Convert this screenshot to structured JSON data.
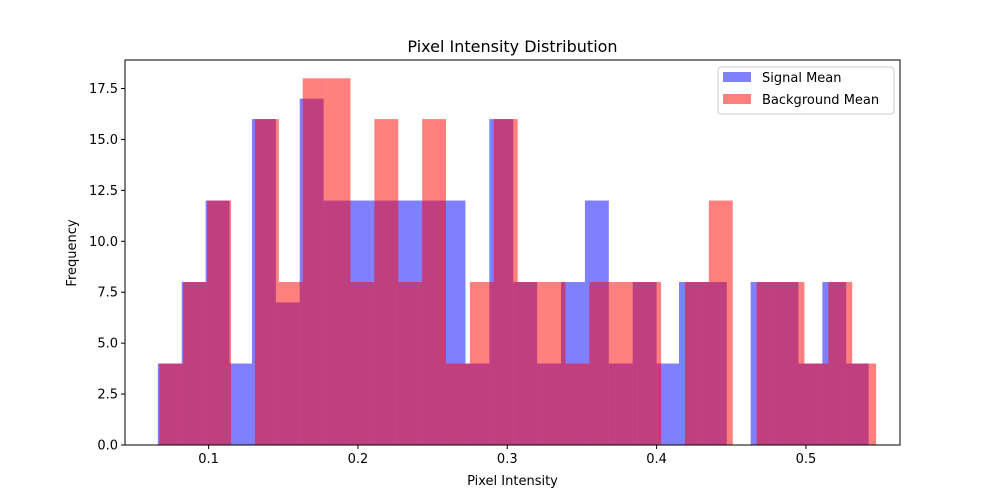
{
  "chart_data": {
    "type": "bar",
    "title": "Pixel Intensity Distribution",
    "xlabel": "Pixel Intensity",
    "ylabel": "Frequency",
    "xlim": [
      0.044,
      0.563
    ],
    "ylim": [
      0,
      18.9
    ],
    "grid": false,
    "legend_position": "top-right",
    "x_ticks": [
      0.1,
      0.2,
      0.3,
      0.4,
      0.5
    ],
    "x_tick_labels": [
      "0.1",
      "0.2",
      "0.3",
      "0.4",
      "0.5"
    ],
    "y_ticks": [
      0,
      2.5,
      5,
      7.5,
      10,
      12.5,
      15,
      17.5
    ],
    "y_tick_labels": [
      "0.0",
      "2.5",
      "5.0",
      "7.5",
      "10.0",
      "12.5",
      "15.0",
      "17.5"
    ],
    "series": [
      {
        "name": "Signal Mean",
        "color": "#0000ff",
        "opacity": 0.5,
        "bins": [
          {
            "x0": 0.066,
            "x1": 0.082,
            "value": 4
          },
          {
            "x0": 0.082,
            "x1": 0.098,
            "value": 8
          },
          {
            "x0": 0.098,
            "x1": 0.114,
            "value": 12
          },
          {
            "x0": 0.114,
            "x1": 0.129,
            "value": 4
          },
          {
            "x0": 0.129,
            "x1": 0.145,
            "value": 16
          },
          {
            "x0": 0.145,
            "x1": 0.161,
            "value": 7
          },
          {
            "x0": 0.161,
            "x1": 0.177,
            "value": 17
          },
          {
            "x0": 0.177,
            "x1": 0.193,
            "value": 12
          },
          {
            "x0": 0.193,
            "x1": 0.209,
            "value": 12
          },
          {
            "x0": 0.209,
            "x1": 0.225,
            "value": 12
          },
          {
            "x0": 0.225,
            "x1": 0.241,
            "value": 12
          },
          {
            "x0": 0.241,
            "x1": 0.257,
            "value": 12
          },
          {
            "x0": 0.257,
            "x1": 0.272,
            "value": 12
          },
          {
            "x0": 0.272,
            "x1": 0.288,
            "value": 4
          },
          {
            "x0": 0.288,
            "x1": 0.304,
            "value": 16
          },
          {
            "x0": 0.304,
            "x1": 0.32,
            "value": 8
          },
          {
            "x0": 0.32,
            "x1": 0.336,
            "value": 4
          },
          {
            "x0": 0.336,
            "x1": 0.352,
            "value": 8
          },
          {
            "x0": 0.352,
            "x1": 0.368,
            "value": 12
          },
          {
            "x0": 0.368,
            "x1": 0.384,
            "value": 4
          },
          {
            "x0": 0.384,
            "x1": 0.4,
            "value": 8
          },
          {
            "x0": 0.4,
            "x1": 0.415,
            "value": 4
          },
          {
            "x0": 0.415,
            "x1": 0.431,
            "value": 8
          },
          {
            "x0": 0.431,
            "x1": 0.447,
            "value": 8
          },
          {
            "x0": 0.447,
            "x1": 0.463,
            "value": 0
          },
          {
            "x0": 0.463,
            "x1": 0.479,
            "value": 8
          },
          {
            "x0": 0.479,
            "x1": 0.495,
            "value": 8
          },
          {
            "x0": 0.495,
            "x1": 0.511,
            "value": 4
          },
          {
            "x0": 0.511,
            "x1": 0.527,
            "value": 8
          },
          {
            "x0": 0.527,
            "x1": 0.542,
            "value": 4
          }
        ]
      },
      {
        "name": "Background Mean",
        "color": "#ff0000",
        "opacity": 0.5,
        "bins": [
          {
            "x0": 0.067,
            "x1": 0.083,
            "value": 4
          },
          {
            "x0": 0.083,
            "x1": 0.099,
            "value": 8
          },
          {
            "x0": 0.099,
            "x1": 0.115,
            "value": 12
          },
          {
            "x0": 0.115,
            "x1": 0.131,
            "value": 0
          },
          {
            "x0": 0.131,
            "x1": 0.147,
            "value": 16
          },
          {
            "x0": 0.147,
            "x1": 0.163,
            "value": 8
          },
          {
            "x0": 0.163,
            "x1": 0.179,
            "value": 18
          },
          {
            "x0": 0.179,
            "x1": 0.195,
            "value": 18
          },
          {
            "x0": 0.195,
            "x1": 0.211,
            "value": 8
          },
          {
            "x0": 0.211,
            "x1": 0.227,
            "value": 16
          },
          {
            "x0": 0.227,
            "x1": 0.243,
            "value": 8
          },
          {
            "x0": 0.243,
            "x1": 0.259,
            "value": 16
          },
          {
            "x0": 0.259,
            "x1": 0.275,
            "value": 4
          },
          {
            "x0": 0.275,
            "x1": 0.291,
            "value": 8
          },
          {
            "x0": 0.291,
            "x1": 0.307,
            "value": 16
          },
          {
            "x0": 0.307,
            "x1": 0.323,
            "value": 8
          },
          {
            "x0": 0.323,
            "x1": 0.339,
            "value": 8
          },
          {
            "x0": 0.339,
            "x1": 0.355,
            "value": 4
          },
          {
            "x0": 0.355,
            "x1": 0.371,
            "value": 8
          },
          {
            "x0": 0.371,
            "x1": 0.387,
            "value": 8
          },
          {
            "x0": 0.387,
            "x1": 0.403,
            "value": 8
          },
          {
            "x0": 0.403,
            "x1": 0.419,
            "value": 0
          },
          {
            "x0": 0.419,
            "x1": 0.435,
            "value": 8
          },
          {
            "x0": 0.435,
            "x1": 0.451,
            "value": 12
          },
          {
            "x0": 0.451,
            "x1": 0.467,
            "value": 0
          },
          {
            "x0": 0.467,
            "x1": 0.483,
            "value": 8
          },
          {
            "x0": 0.483,
            "x1": 0.499,
            "value": 8
          },
          {
            "x0": 0.499,
            "x1": 0.515,
            "value": 4
          },
          {
            "x0": 0.515,
            "x1": 0.531,
            "value": 8
          },
          {
            "x0": 0.531,
            "x1": 0.547,
            "value": 4
          }
        ]
      }
    ]
  }
}
